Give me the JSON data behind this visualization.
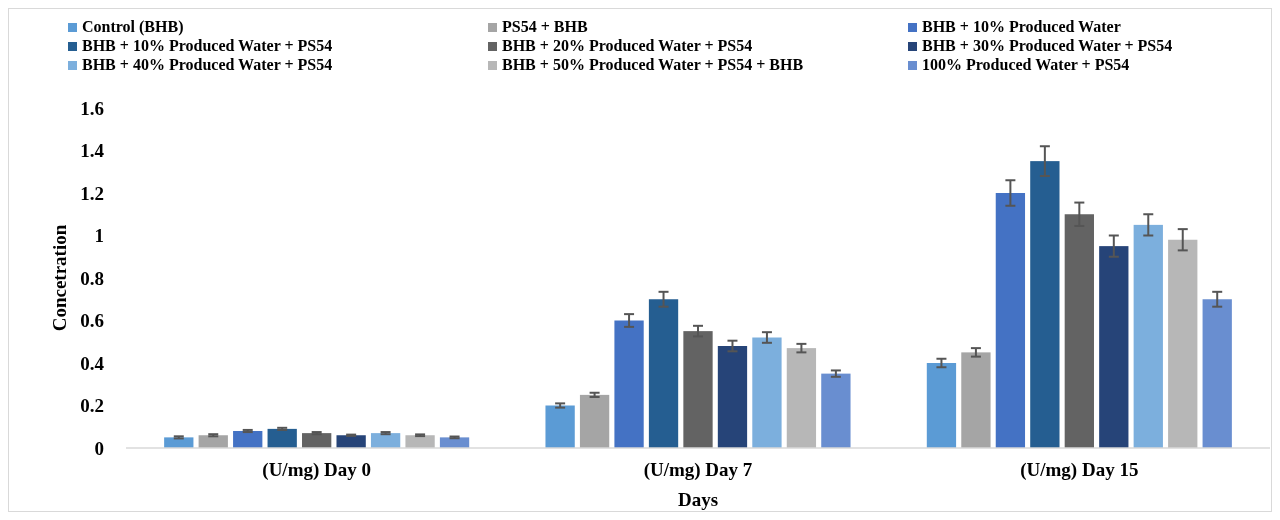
{
  "chart_data": {
    "type": "bar",
    "xlabel": "Days",
    "ylabel": "Concetration",
    "categories": [
      "(U/mg) Day 0",
      "(U/mg) Day 7",
      "(U/mg) Day 15"
    ],
    "ylim": [
      0,
      1.6
    ],
    "yticks": [
      0,
      0.2,
      0.4,
      0.6,
      0.8,
      1,
      1.2,
      1.4,
      1.6
    ],
    "grid": false,
    "legend": "top",
    "series": [
      {
        "name": "Control (BHB)",
        "color": "#5b9bd5",
        "values": [
          0.05,
          0.2,
          0.4
        ],
        "errors": [
          0.005,
          0.01,
          0.02
        ]
      },
      {
        "name": "PS54 + BHB",
        "color": "#a5a5a5",
        "values": [
          0.06,
          0.25,
          0.45
        ],
        "errors": [
          0.005,
          0.01,
          0.02
        ]
      },
      {
        "name": "BHB + 10% Produced Water",
        "color": "#4472c4",
        "values": [
          0.08,
          0.6,
          1.2
        ],
        "errors": [
          0.005,
          0.03,
          0.06
        ]
      },
      {
        "name": "BHB + 10% Produced Water + PS54",
        "color": "#255e91",
        "values": [
          0.09,
          0.7,
          1.35
        ],
        "errors": [
          0.005,
          0.035,
          0.07
        ]
      },
      {
        "name": "BHB + 20% Produced Water + PS54",
        "color": "#636363",
        "values": [
          0.07,
          0.55,
          1.1
        ],
        "errors": [
          0.005,
          0.025,
          0.055
        ]
      },
      {
        "name": "BHB + 30% Produced Water + PS54",
        "color": "#264478",
        "values": [
          0.06,
          0.48,
          0.95
        ],
        "errors": [
          0.003,
          0.025,
          0.05
        ]
      },
      {
        "name": "BHB + 40% Produced Water + PS54",
        "color": "#7cafdd",
        "values": [
          0.07,
          0.52,
          1.05
        ],
        "errors": [
          0.005,
          0.025,
          0.05
        ]
      },
      {
        "name": "BHB + 50% Produced Water + PS54 + BHB",
        "color": "#b7b7b7",
        "values": [
          0.06,
          0.47,
          0.98
        ],
        "errors": [
          0.004,
          0.02,
          0.05
        ]
      },
      {
        "name": "100% Produced Water + PS54",
        "color": "#698ed0",
        "values": [
          0.05,
          0.35,
          0.7
        ],
        "errors": [
          0.004,
          0.015,
          0.035
        ]
      }
    ]
  }
}
